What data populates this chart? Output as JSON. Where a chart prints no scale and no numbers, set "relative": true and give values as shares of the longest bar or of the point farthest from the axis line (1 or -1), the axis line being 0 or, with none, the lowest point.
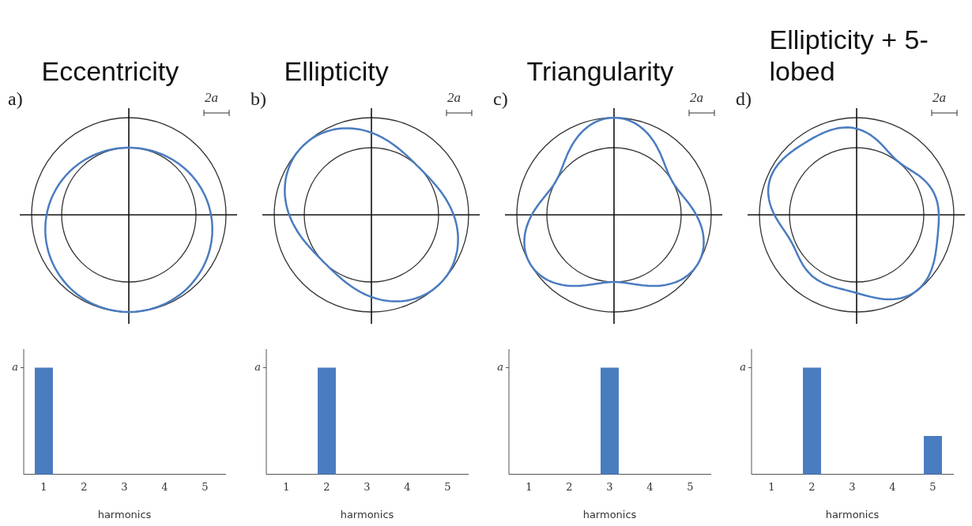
{
  "chart_data": [
    {
      "type": "bar",
      "title": "Eccentricity",
      "subtitle": "a)",
      "categories": [
        "1",
        "2",
        "3",
        "4",
        "5"
      ],
      "values": [
        1,
        0,
        0,
        0,
        0
      ],
      "color": "#4a7cc0",
      "relative": true,
      "xlabel": "harmonics",
      "annotations": [
        "2a",
        "a"
      ]
    },
    {
      "type": "bar",
      "title": "Ellipticity",
      "subtitle": "b)",
      "categories": [
        "1",
        "2",
        "3",
        "4",
        "5"
      ],
      "values": [
        0,
        1,
        0,
        0,
        0
      ],
      "color": "#4a7cc0",
      "relative": true,
      "xlabel": "harmonics",
      "annotations": [
        "2a",
        "a"
      ]
    },
    {
      "type": "bar",
      "title": "Triangularity",
      "subtitle": "c)",
      "categories": [
        "1",
        "2",
        "3",
        "4",
        "5"
      ],
      "values": [
        0,
        0,
        1,
        0,
        0
      ],
      "color": "#4a7cc0",
      "relative": true,
      "xlabel": "harmonics",
      "annotations": [
        "2a",
        "a"
      ]
    },
    {
      "type": "bar",
      "title": "Ellipticity + 5-lobed",
      "subtitle": "d)",
      "categories": [
        "1",
        "2",
        "3",
        "4",
        "5"
      ],
      "values": [
        0,
        1,
        0,
        0,
        0.36
      ],
      "color": "#4a7cc0",
      "relative": true,
      "xlabel": "harmonics",
      "annotations": [
        "2a",
        "a"
      ]
    }
  ]
}
